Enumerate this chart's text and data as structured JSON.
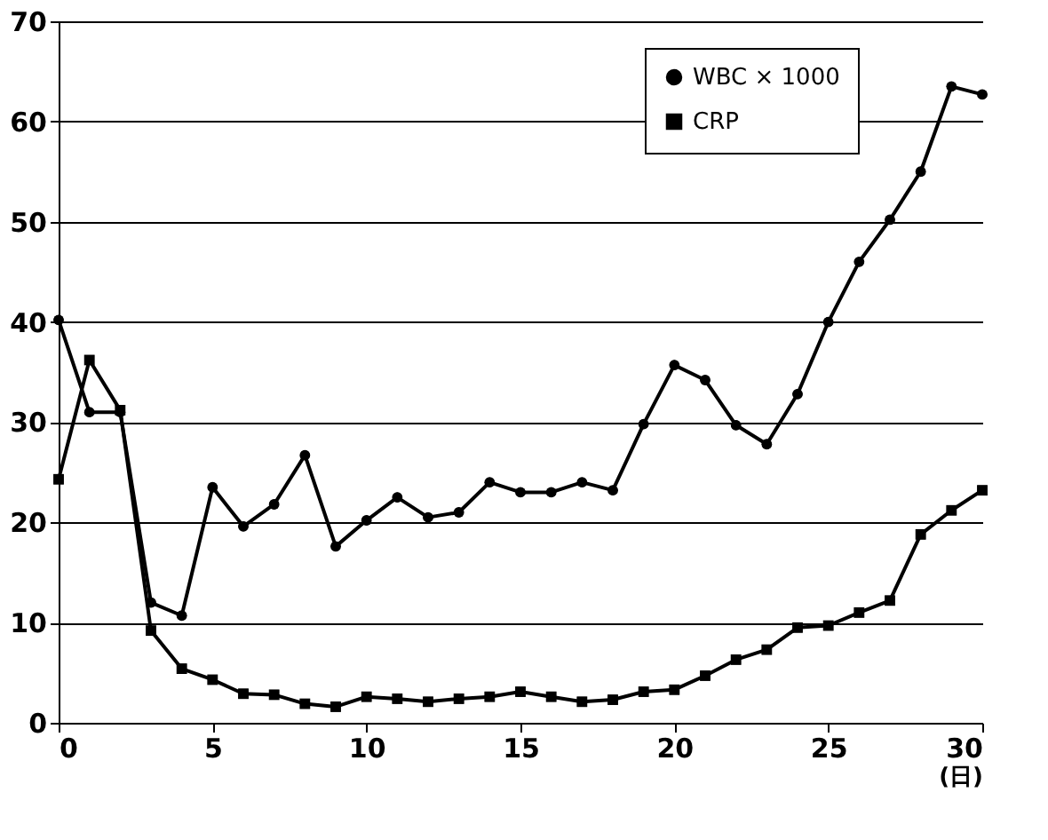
{
  "chart_data": {
    "type": "line",
    "xlabel": "(日)",
    "x": [
      0,
      1,
      2,
      3,
      4,
      5,
      6,
      7,
      8,
      9,
      10,
      11,
      12,
      13,
      14,
      15,
      16,
      17,
      18,
      19,
      20,
      21,
      22,
      23,
      24,
      25,
      26,
      27,
      28,
      29,
      30
    ],
    "series": [
      {
        "name": "WBC × 1000",
        "color": "#000000",
        "marker": "circle",
        "values": [
          40.2,
          31,
          31,
          12,
          10.7,
          23.5,
          19.6,
          21.8,
          26.7,
          17.6,
          20.2,
          22.5,
          20.5,
          21,
          24,
          23,
          23,
          24,
          23.2,
          29.8,
          35.7,
          34.2,
          29.7,
          27.8,
          32.8,
          40,
          46,
          50.2,
          55,
          63.5,
          62.7
        ]
      },
      {
        "name": "CRP",
        "color": "#000000",
        "marker": "square",
        "values": [
          24.3,
          36.2,
          31.2,
          9.2,
          5.4,
          4.3,
          2.9,
          2.8,
          1.9,
          1.6,
          2.6,
          2.4,
          2.1,
          2.4,
          2.6,
          3.1,
          2.6,
          2.1,
          2.3,
          3.1,
          3.3,
          4.7,
          6.3,
          7.3,
          9.5,
          9.7,
          11,
          12.2,
          18.8,
          21.2,
          23.2
        ]
      }
    ],
    "xlim": [
      0,
      30
    ],
    "xticks": [
      0,
      5,
      10,
      15,
      20,
      25,
      30
    ],
    "ylim": [
      0,
      70
    ],
    "yticks": [
      0,
      10,
      20,
      30,
      40,
      50,
      60,
      70
    ],
    "grid": "y",
    "legend": "top right",
    "line_style": "solid"
  }
}
